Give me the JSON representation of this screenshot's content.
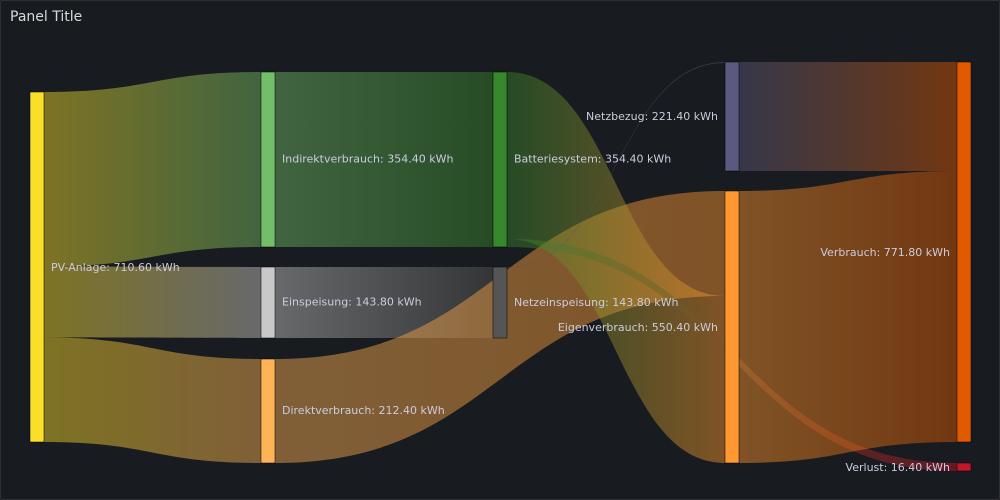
{
  "panel": {
    "title": "Panel Title"
  },
  "chart_data": {
    "type": "sankey",
    "unit": "kWh",
    "nodes": [
      {
        "id": "pv",
        "label": "PV-Anlage: 710.60 kWh",
        "value": 710.6,
        "color": "#fade2a",
        "column": 0
      },
      {
        "id": "indirekt",
        "label": "Indirektverbrauch: 354.40 kWh",
        "value": 354.4,
        "color": "#73bf69",
        "column": 1
      },
      {
        "id": "einspeisung",
        "label": "Einspeisung: 143.80 kWh",
        "value": 143.8,
        "color": "#c8c8c8",
        "column": 1
      },
      {
        "id": "direkt",
        "label": "Direktverbrauch: 212.40 kWh",
        "value": 212.4,
        "color": "#ffb357",
        "column": 1
      },
      {
        "id": "batterie",
        "label": "Batteriesystem: 354.40 kWh",
        "value": 354.4,
        "color": "#37872d",
        "column": 2
      },
      {
        "id": "netzeinsp",
        "label": "Netzeinspeisung: 143.80 kWh",
        "value": 143.8,
        "color": "#555555",
        "column": 2
      },
      {
        "id": "netzbezug",
        "label": "Netzbezug: 221.40 kWh",
        "value": 221.4,
        "color": "#5a5a80",
        "column": 3
      },
      {
        "id": "eigen",
        "label": "Eigenverbrauch: 550.40 kWh",
        "value": 550.4,
        "color": "#ff9830",
        "column": 3
      },
      {
        "id": "verbrauch",
        "label": "Verbrauch: 771.80 kWh",
        "value": 771.8,
        "color": "#e05a00",
        "column": 4
      },
      {
        "id": "verlust",
        "label": "Verlust: 16.40 kWh",
        "value": 16.4,
        "color": "#c4162a",
        "column": 4
      }
    ],
    "links": [
      {
        "source": "pv",
        "target": "indirekt",
        "value": 354.4
      },
      {
        "source": "pv",
        "target": "einspeisung",
        "value": 143.8
      },
      {
        "source": "pv",
        "target": "direkt",
        "value": 212.4
      },
      {
        "source": "indirekt",
        "target": "batterie",
        "value": 354.4
      },
      {
        "source": "einspeisung",
        "target": "netzeinsp",
        "value": 143.8
      },
      {
        "source": "direkt",
        "target": "eigen",
        "value": 212.4
      },
      {
        "source": "batterie",
        "target": "eigen",
        "value": 338.0
      },
      {
        "source": "batterie",
        "target": "verlust",
        "value": 16.4
      },
      {
        "source": "netzeinsp",
        "target": "netzbezug",
        "value": 0.5
      },
      {
        "source": "netzbezug",
        "target": "verbrauch",
        "value": 221.4
      },
      {
        "source": "eigen",
        "target": "verbrauch",
        "value": 550.4
      }
    ]
  }
}
